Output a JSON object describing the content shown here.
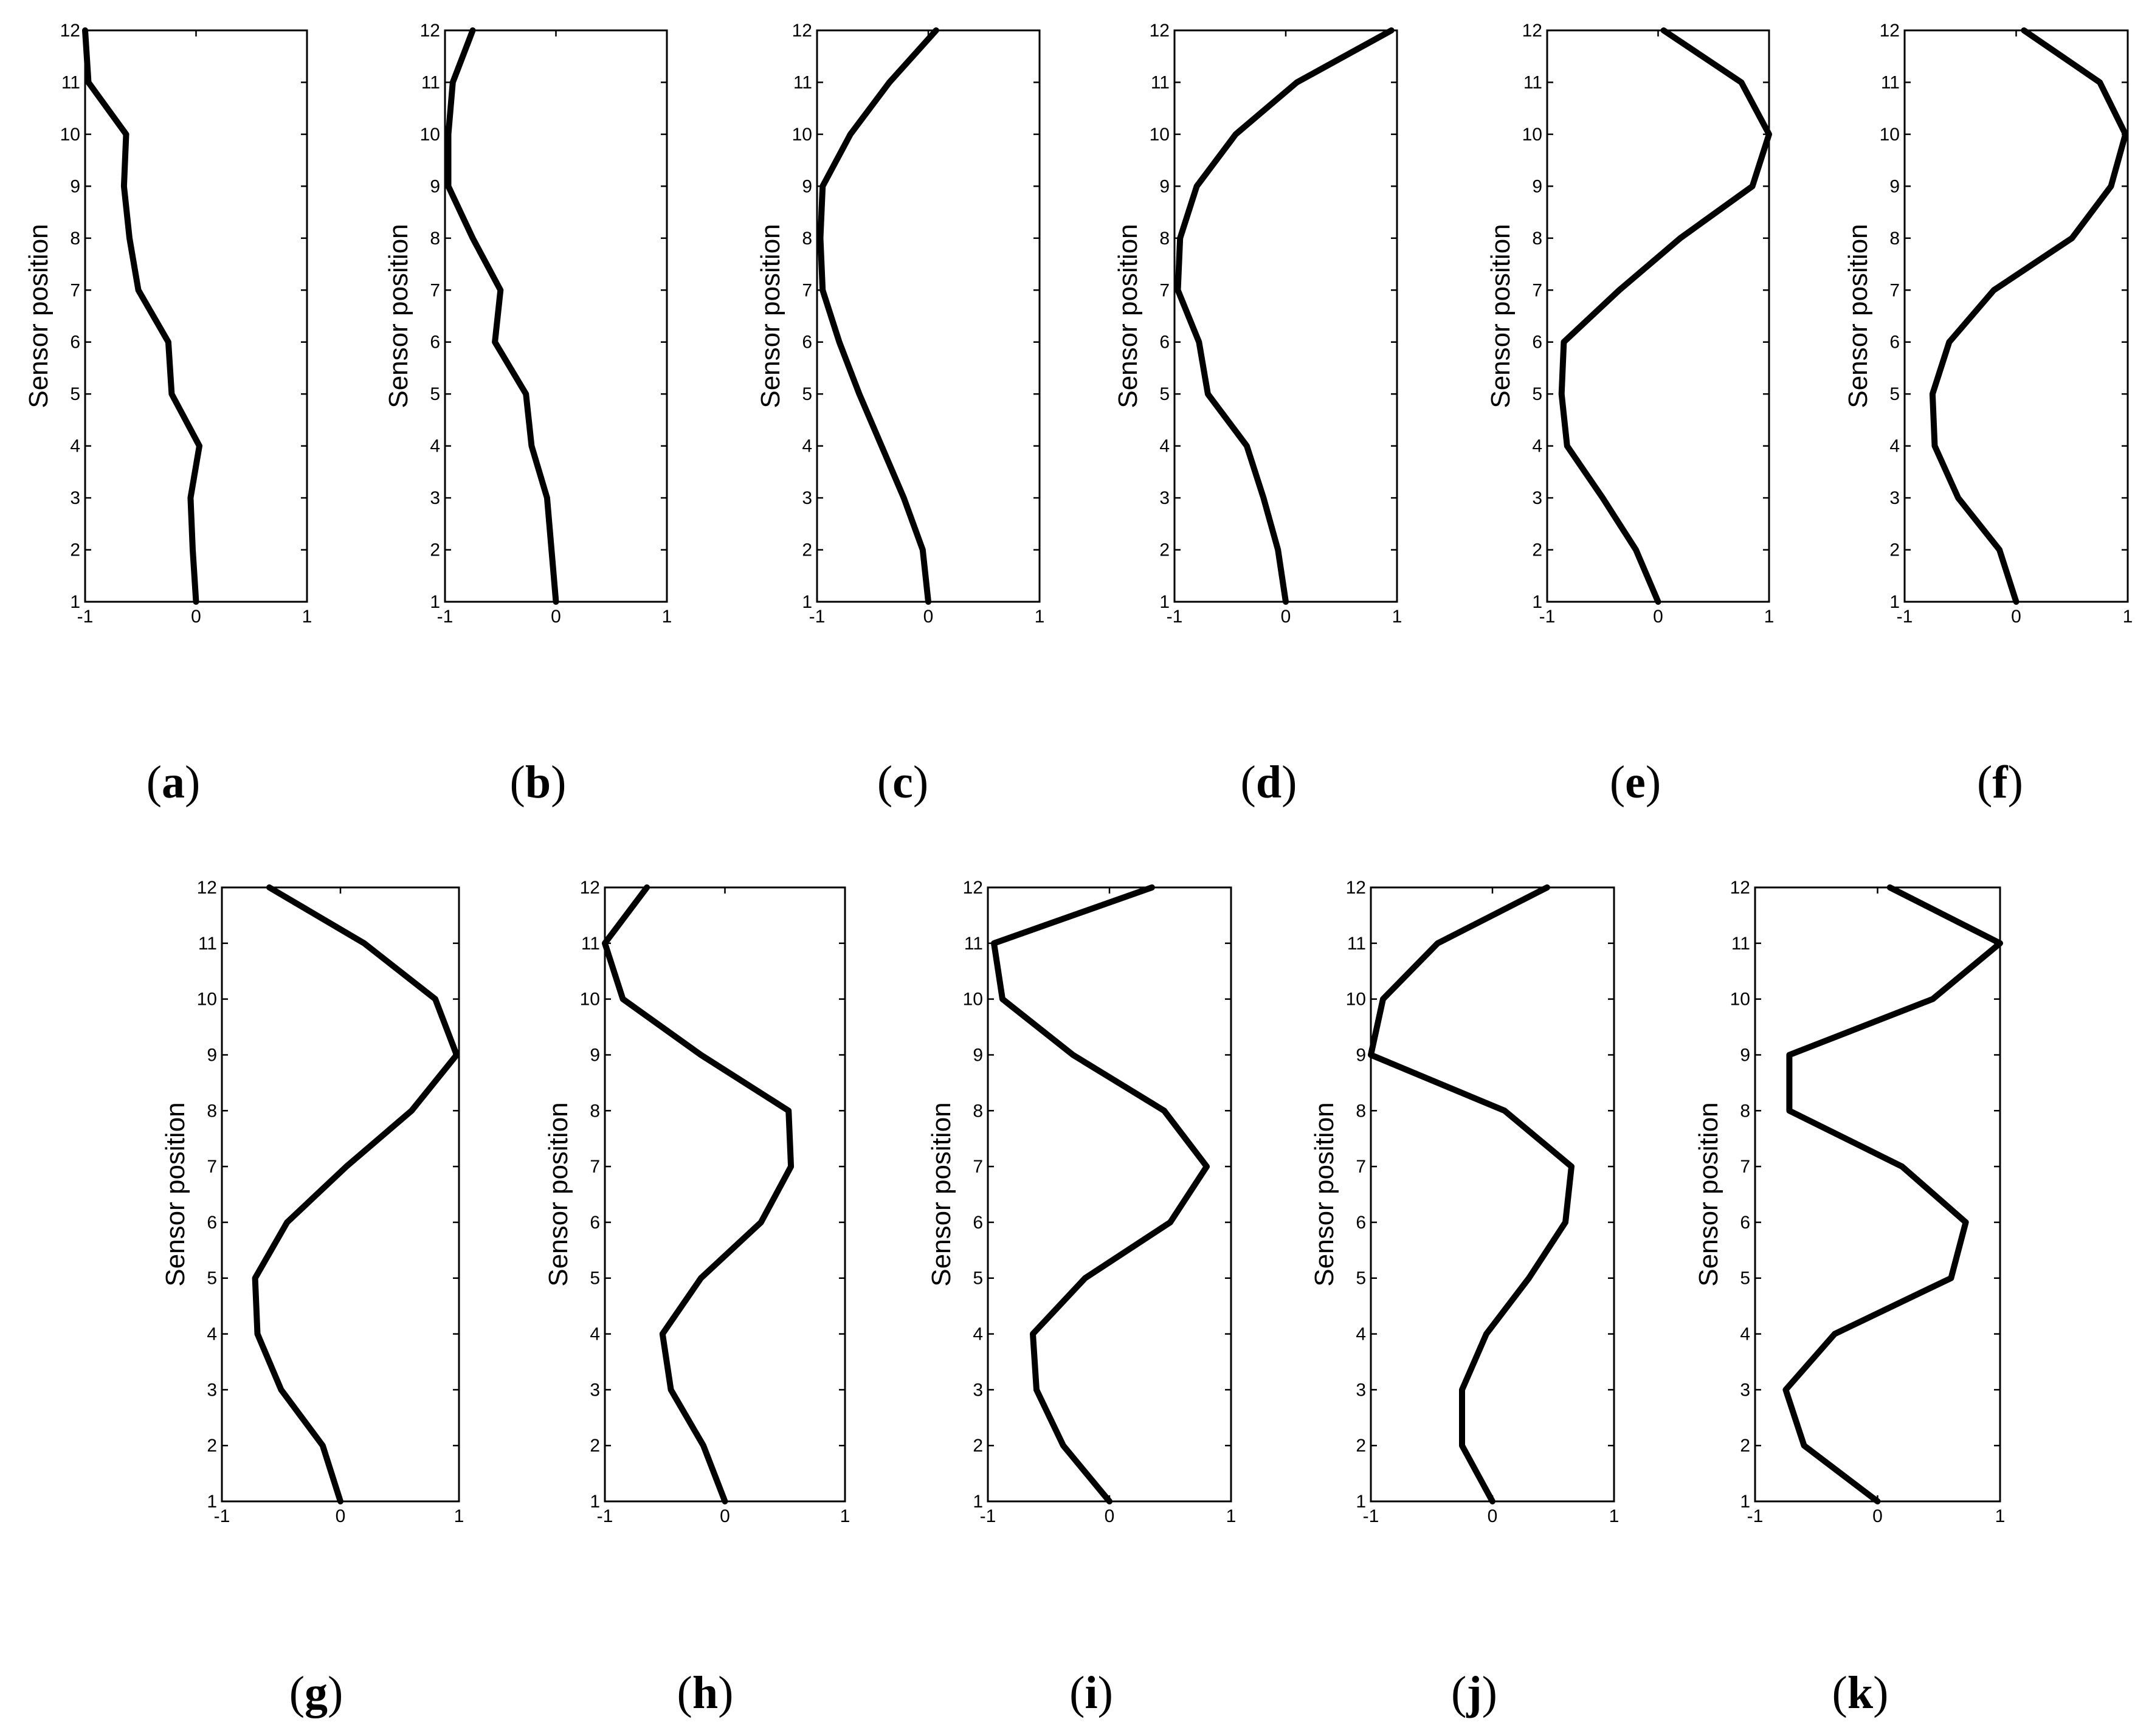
{
  "chart_data": [
    {
      "type": "line",
      "panel": "a",
      "xlim": [
        -1,
        1
      ],
      "ylim": [
        1,
        12
      ],
      "xticks": [
        "-1",
        "0",
        "1"
      ],
      "yticks": [
        "1",
        "2",
        "3",
        "4",
        "5",
        "6",
        "7",
        "8",
        "9",
        "10",
        "11",
        "12"
      ],
      "ylabel": "Sensor position",
      "series": [
        {
          "x": [
            0.0,
            -0.03,
            -0.05,
            0.03,
            -0.22,
            -0.25,
            -0.52,
            -0.6,
            -0.65,
            -0.63,
            -0.97,
            -1.0
          ],
          "y": [
            1,
            2,
            3,
            4,
            5,
            6,
            7,
            8,
            9,
            10,
            11,
            12
          ]
        }
      ]
    },
    {
      "type": "line",
      "panel": "b",
      "xlim": [
        -1,
        1
      ],
      "ylim": [
        1,
        12
      ],
      "xticks": [
        "-1",
        "0",
        "1"
      ],
      "yticks": [
        "1",
        "2",
        "3",
        "4",
        "5",
        "6",
        "7",
        "8",
        "9",
        "10",
        "11",
        "12"
      ],
      "ylabel": "Sensor position",
      "series": [
        {
          "x": [
            0.0,
            -0.08,
            -0.22,
            -0.27,
            -0.55,
            -0.5,
            -0.75,
            -0.97,
            -0.97,
            -0.93,
            -0.75
          ],
          "y": [
            1,
            3,
            4,
            5,
            6,
            7,
            8,
            9,
            10,
            11,
            12
          ]
        }
      ]
    },
    {
      "type": "line",
      "panel": "c",
      "xlim": [
        -1,
        1
      ],
      "ylim": [
        1,
        12
      ],
      "xticks": [
        "-1",
        "0",
        "1"
      ],
      "yticks": [
        "1",
        "2",
        "3",
        "4",
        "5",
        "6",
        "7",
        "8",
        "9",
        "10",
        "11",
        "12"
      ],
      "ylabel": "Sensor position",
      "series": [
        {
          "x": [
            0.0,
            -0.05,
            -0.22,
            -0.42,
            -0.62,
            -0.8,
            -0.95,
            -0.97,
            -0.95,
            -0.7,
            -0.35,
            0.07
          ],
          "y": [
            1,
            2,
            3,
            4,
            5,
            6,
            7,
            8,
            9,
            10,
            11,
            12
          ]
        }
      ]
    },
    {
      "type": "line",
      "panel": "d",
      "xlim": [
        -1,
        1
      ],
      "ylim": [
        1,
        12
      ],
      "xticks": [
        "-1",
        "0",
        "1"
      ],
      "yticks": [
        "1",
        "2",
        "3",
        "4",
        "5",
        "6",
        "7",
        "8",
        "9",
        "10",
        "11",
        "12"
      ],
      "ylabel": "Sensor position",
      "series": [
        {
          "x": [
            0.0,
            -0.07,
            -0.2,
            -0.35,
            -0.7,
            -0.78,
            -0.97,
            -0.95,
            -0.8,
            -0.45,
            0.1,
            0.95
          ],
          "y": [
            1,
            2,
            3,
            4,
            5,
            6,
            7,
            8,
            9,
            10,
            11,
            12
          ]
        }
      ]
    },
    {
      "type": "line",
      "panel": "e",
      "xlim": [
        -1,
        1
      ],
      "ylim": [
        1,
        12
      ],
      "xticks": [
        "-1",
        "0",
        "1"
      ],
      "yticks": [
        "1",
        "2",
        "3",
        "4",
        "5",
        "6",
        "7",
        "8",
        "9",
        "10",
        "11",
        "12"
      ],
      "ylabel": "Sensor position",
      "series": [
        {
          "x": [
            0.0,
            -0.2,
            -0.5,
            -0.82,
            -0.87,
            -0.85,
            -0.35,
            0.2,
            0.85,
            1.0,
            0.75,
            0.05
          ],
          "y": [
            1,
            2,
            3,
            4,
            5,
            6,
            7,
            8,
            9,
            10,
            11,
            12
          ]
        }
      ]
    },
    {
      "type": "line",
      "panel": "f",
      "xlim": [
        -1,
        1
      ],
      "ylim": [
        1,
        12
      ],
      "xticks": [
        "-1",
        "0",
        "1"
      ],
      "yticks": [
        "1",
        "2",
        "3",
        "4",
        "5",
        "6",
        "7",
        "8",
        "9",
        "10",
        "11",
        "12"
      ],
      "ylabel": "Sensor position",
      "series": [
        {
          "x": [
            0.0,
            -0.15,
            -0.52,
            -0.73,
            -0.75,
            -0.6,
            -0.2,
            0.5,
            0.85,
            0.98,
            0.75,
            0.07
          ],
          "y": [
            1,
            2,
            3,
            4,
            5,
            6,
            7,
            8,
            9,
            10,
            11,
            12
          ]
        }
      ]
    },
    {
      "type": "line",
      "panel": "g",
      "xlim": [
        -1,
        1
      ],
      "ylim": [
        1,
        12
      ],
      "xticks": [
        "-1",
        "0",
        "1"
      ],
      "yticks": [
        "1",
        "2",
        "3",
        "4",
        "5",
        "6",
        "7",
        "8",
        "9",
        "10",
        "11",
        "12"
      ],
      "ylabel": "Sensor position",
      "series": [
        {
          "x": [
            0.0,
            -0.15,
            -0.5,
            -0.7,
            -0.72,
            -0.45,
            0.05,
            0.6,
            0.98,
            0.8,
            0.2,
            -0.6
          ],
          "y": [
            1,
            2,
            3,
            4,
            5,
            6,
            7,
            8,
            9,
            10,
            11,
            12
          ]
        }
      ]
    },
    {
      "type": "line",
      "panel": "h",
      "xlim": [
        -1,
        1
      ],
      "ylim": [
        1,
        12
      ],
      "xticks": [
        "-1",
        "0",
        "1"
      ],
      "yticks": [
        "1",
        "2",
        "3",
        "4",
        "5",
        "6",
        "7",
        "8",
        "9",
        "10",
        "11",
        "12"
      ],
      "ylabel": "Sensor position",
      "series": [
        {
          "x": [
            0.0,
            -0.18,
            -0.45,
            -0.52,
            -0.2,
            0.3,
            0.55,
            0.53,
            -0.2,
            -0.85,
            -1.0,
            -0.65
          ],
          "y": [
            1,
            2,
            3,
            4,
            5,
            6,
            7,
            8,
            9,
            10,
            11,
            12
          ]
        }
      ]
    },
    {
      "type": "line",
      "panel": "i",
      "xlim": [
        -1,
        1
      ],
      "ylim": [
        1,
        12
      ],
      "xticks": [
        "-1",
        "0",
        "1"
      ],
      "yticks": [
        "1",
        "2",
        "3",
        "4",
        "5",
        "6",
        "7",
        "8",
        "9",
        "10",
        "11",
        "12"
      ],
      "ylabel": "Sensor position",
      "series": [
        {
          "x": [
            0.0,
            -0.38,
            -0.6,
            -0.63,
            -0.2,
            0.5,
            0.8,
            0.45,
            -0.3,
            -0.88,
            -0.95,
            0.35
          ],
          "y": [
            1,
            2,
            3,
            4,
            5,
            6,
            7,
            8,
            9,
            10,
            11,
            12
          ]
        }
      ]
    },
    {
      "type": "line",
      "panel": "j",
      "xlim": [
        -1,
        1
      ],
      "ylim": [
        1,
        12
      ],
      "xticks": [
        "-1",
        "0",
        "1"
      ],
      "yticks": [
        "1",
        "2",
        "3",
        "4",
        "5",
        "6",
        "7",
        "8",
        "9",
        "10",
        "11",
        "12"
      ],
      "ylabel": "Sensor position",
      "series": [
        {
          "x": [
            0.0,
            -0.25,
            -0.25,
            -0.05,
            0.3,
            0.6,
            0.65,
            0.1,
            -1.0,
            -0.9,
            -0.45,
            0.45
          ],
          "y": [
            1,
            2,
            3,
            4,
            5,
            6,
            7,
            8,
            9,
            10,
            11,
            12
          ]
        }
      ]
    },
    {
      "type": "line",
      "panel": "k",
      "xlim": [
        -1,
        1
      ],
      "ylim": [
        1,
        12
      ],
      "xticks": [
        "-1",
        "0",
        "1"
      ],
      "yticks": [
        "1",
        "2",
        "3",
        "4",
        "5",
        "6",
        "7",
        "8",
        "9",
        "10",
        "11",
        "12"
      ],
      "ylabel": "Sensor position",
      "series": [
        {
          "x": [
            0.0,
            -0.6,
            -0.75,
            -0.35,
            0.6,
            0.72,
            0.2,
            -0.72,
            -0.72,
            0.45,
            1.0,
            0.1
          ],
          "y": [
            1,
            2,
            3,
            4,
            5,
            6,
            7,
            8,
            9,
            10,
            11,
            12
          ]
        }
      ]
    }
  ],
  "panel_labels": [
    {
      "open": "(",
      "letter": "a",
      "close": ")"
    },
    {
      "open": "(",
      "letter": "b",
      "close": ")"
    },
    {
      "open": "(",
      "letter": "c",
      "close": ")"
    },
    {
      "open": "(",
      "letter": "d",
      "close": ")"
    },
    {
      "open": "(",
      "letter": "e",
      "close": ")"
    },
    {
      "open": "(",
      "letter": "f",
      "close": ")"
    },
    {
      "open": "(",
      "letter": "g",
      "close": ")"
    },
    {
      "open": "(",
      "letter": "h",
      "close": ")"
    },
    {
      "open": "(",
      "letter": "i",
      "close": ")"
    },
    {
      "open": "(",
      "letter": "j",
      "close": ")"
    },
    {
      "open": "(",
      "letter": "k",
      "close": ")"
    }
  ]
}
